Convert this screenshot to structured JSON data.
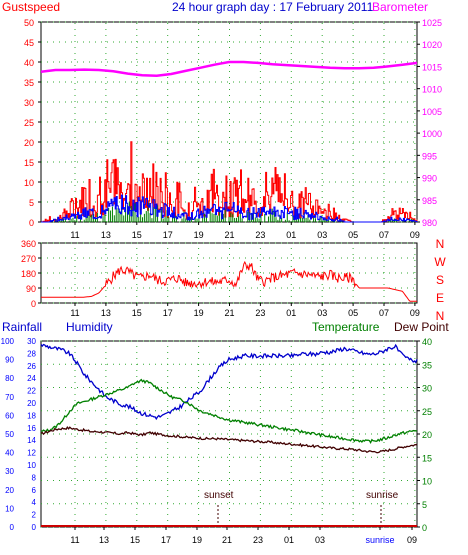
{
  "header": {
    "gust_label": "Gustspeed",
    "title": "24 hour graph day : 17 February 2011",
    "baro_label": "Barometer"
  },
  "mid_header": {
    "compass_letters": [
      "N",
      "W",
      "S",
      "E",
      "N"
    ]
  },
  "bottom_header": {
    "rain_label": "Rainfall",
    "hum_label": "Humidity",
    "temp_label": "Temperature",
    "dew_label": "Dew Point"
  },
  "annotations": {
    "sunset": "sunset",
    "sunrise": "sunrise"
  },
  "colors": {
    "gust": "#ff0000",
    "wind_blue": "#0000ff",
    "wind_green": "#008000",
    "baro": "#ff00ff",
    "humidity": "#0000cc",
    "temperature": "#008000",
    "dewpoint": "#400000",
    "rain": "#cc0000",
    "grid": "#33aa33",
    "axis_red": "#ff0000",
    "axis_blue": "#0000ff"
  },
  "chart_data": [
    {
      "type": "line",
      "panel": "wind-baro",
      "x_ticks": [
        "11",
        "13",
        "15",
        "17",
        "19",
        "21",
        "23",
        "01",
        "03",
        "05",
        "07",
        "09"
      ],
      "y_left_ticks": [
        "0",
        "5",
        "10",
        "15",
        "20",
        "25",
        "30",
        "35",
        "40",
        "45",
        "50"
      ],
      "y_left_range": [
        0,
        50
      ],
      "y_right_ticks": [
        "980",
        "985",
        "990",
        "995",
        "1000",
        "1005",
        "1010",
        "1015",
        "1020",
        "1025"
      ],
      "y_right_range": [
        980,
        1025
      ],
      "series": [
        {
          "name": "Gustspeed",
          "kind": "spiky",
          "values": [
            0,
            1,
            1,
            3,
            4,
            6,
            8,
            9,
            10,
            12,
            11,
            12,
            15,
            16,
            12,
            11,
            10,
            9,
            8,
            7,
            5,
            6,
            9,
            10,
            10,
            9,
            11,
            10,
            9,
            7,
            8,
            10,
            10,
            11,
            9,
            8,
            8,
            7,
            5,
            4,
            3,
            2,
            1,
            0,
            0,
            0,
            0,
            0,
            2,
            3,
            3,
            2,
            1
          ]
        },
        {
          "name": "Windspeed",
          "kind": "spiky",
          "values": [
            0,
            0,
            1,
            1,
            2,
            2,
            3,
            3,
            4,
            5,
            5,
            6,
            7,
            7,
            6,
            6,
            5,
            4,
            3,
            3,
            2,
            2,
            3,
            4,
            4,
            4,
            4,
            4,
            3,
            3,
            3,
            4,
            4,
            4,
            3,
            3,
            3,
            2,
            2,
            1,
            1,
            1,
            0,
            0,
            0,
            0,
            0,
            0,
            1,
            1,
            1,
            1,
            0
          ]
        },
        {
          "name": "Barometer",
          "kind": "smooth",
          "x": [
            0,
            1,
            2,
            3,
            4,
            5,
            6,
            7,
            8,
            9,
            10,
            11,
            12,
            13,
            14,
            15,
            16,
            17,
            18,
            19,
            20,
            21,
            22,
            23,
            24,
            25,
            26
          ],
          "values": [
            1013.8,
            1014.2,
            1014.2,
            1014.3,
            1014.2,
            1013.9,
            1013.4,
            1013.0,
            1012.9,
            1013.3,
            1014.0,
            1014.7,
            1015.4,
            1016.0,
            1016.0,
            1015.8,
            1015.5,
            1015.3,
            1015.1,
            1014.9,
            1014.7,
            1014.6,
            1014.6,
            1014.7,
            1015.0,
            1015.4,
            1015.8
          ]
        }
      ]
    },
    {
      "type": "line",
      "panel": "wind-direction",
      "x_ticks": [
        "11",
        "13",
        "15",
        "17",
        "19",
        "21",
        "23",
        "01",
        "03",
        "05",
        "07",
        "09"
      ],
      "y_ticks": [
        "0",
        "90",
        "180",
        "270",
        "360"
      ],
      "y_range": [
        0,
        360
      ],
      "series": [
        {
          "name": "Direction",
          "values": [
            35,
            35,
            35,
            35,
            35,
            35,
            35,
            40,
            60,
            110,
            160,
            200,
            190,
            160,
            150,
            170,
            140,
            130,
            140,
            150,
            120,
            120,
            120,
            130,
            125,
            130,
            140,
            110,
            220,
            225,
            140,
            130,
            150,
            160,
            170,
            180,
            175,
            170,
            160,
            160,
            170,
            150,
            150,
            150,
            90,
            90,
            90,
            90,
            90,
            80,
            70,
            10,
            10
          ]
        }
      ]
    },
    {
      "type": "line",
      "panel": "temp-hum",
      "x_ticks": [
        "11",
        "13",
        "15",
        "17",
        "19",
        "21",
        "23",
        "01",
        "03",
        "sunrise",
        "09"
      ],
      "y_left_rain_ticks": [
        "0",
        "2",
        "4",
        "6",
        "8",
        "10",
        "12",
        "14",
        "16",
        "18",
        "20",
        "22",
        "24",
        "26",
        "28",
        "30"
      ],
      "y_left_hum_ticks": [
        "0",
        "10",
        "20",
        "30",
        "40",
        "50",
        "60",
        "70",
        "80",
        "90",
        "100"
      ],
      "y_right_ticks": [
        "0",
        "5",
        "10",
        "15",
        "20",
        "25",
        "30",
        "35",
        "40"
      ],
      "y_right_range": [
        0,
        40
      ],
      "series": [
        {
          "name": "Humidity",
          "values": [
            98,
            97,
            96,
            95,
            93,
            88,
            82,
            78,
            74,
            70,
            68,
            66,
            65,
            63,
            61,
            60,
            59,
            60,
            62,
            64,
            67,
            70,
            73,
            78,
            83,
            87,
            90,
            91,
            92,
            92,
            92,
            92,
            92,
            92,
            92,
            92,
            93,
            93,
            93,
            94,
            94,
            95,
            96,
            95,
            94,
            93,
            93,
            94,
            96,
            97,
            92,
            90,
            89
          ]
        },
        {
          "name": "Temperature",
          "values": [
            20.5,
            20.8,
            21.5,
            23,
            25,
            26.5,
            27,
            27.5,
            28,
            28.5,
            29,
            29.5,
            30,
            31,
            31.5,
            31,
            30,
            29,
            28,
            27.5,
            27,
            26,
            25,
            24.5,
            24,
            23.5,
            23,
            22.8,
            22.5,
            22.3,
            22,
            21.8,
            21.5,
            21.3,
            21,
            20.8,
            20.5,
            20.3,
            20,
            19.7,
            19.4,
            19.2,
            19,
            18.8,
            18.6,
            18.4,
            18.5,
            18.8,
            19.2,
            19.8,
            20.2,
            20.5,
            20.8
          ]
        },
        {
          "name": "Dew Point",
          "values": [
            20,
            20.5,
            21,
            21.2,
            21.3,
            21,
            20.8,
            20.5,
            20.5,
            20.3,
            20.2,
            20,
            20.3,
            20,
            19.8,
            20.3,
            20,
            19.8,
            19.6,
            19.5,
            19.3,
            19.2,
            19.1,
            19,
            19,
            18.9,
            18.8,
            18.7,
            18.6,
            18.5,
            18.4,
            18.3,
            18.2,
            18,
            17.9,
            17.8,
            17.6,
            17.5,
            17.3,
            17.2,
            17,
            16.9,
            16.8,
            16.7,
            16.5,
            16.3,
            16.2,
            16.2,
            16.5,
            16.8,
            17.2,
            17.5,
            17.7
          ]
        },
        {
          "name": "Rainfall",
          "values": [
            0,
            0,
            0,
            0,
            0,
            0,
            0,
            0,
            0,
            0,
            0,
            0,
            0,
            0,
            0,
            0,
            0,
            0,
            0,
            0,
            0,
            0,
            0,
            0,
            0,
            0,
            0,
            0,
            0,
            0,
            0,
            0,
            0,
            0,
            0,
            0,
            0,
            0,
            0,
            0,
            0,
            0,
            0,
            0,
            0,
            0,
            0,
            0,
            0,
            0,
            0,
            0,
            0
          ]
        }
      ]
    }
  ]
}
